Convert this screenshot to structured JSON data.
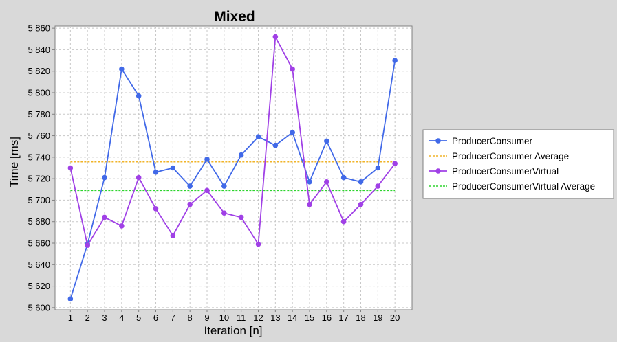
{
  "chart_data": {
    "type": "line",
    "title": "Mixed",
    "xlabel": "Iteration [n]",
    "ylabel": "Time [ms]",
    "x": [
      1,
      2,
      3,
      4,
      5,
      6,
      7,
      8,
      9,
      10,
      11,
      12,
      13,
      14,
      15,
      16,
      17,
      18,
      19,
      20
    ],
    "xticks": [
      "1",
      "2",
      "3",
      "4",
      "5",
      "6",
      "7",
      "8",
      "9",
      "10",
      "11",
      "12",
      "13",
      "14",
      "15",
      "16",
      "17",
      "18",
      "19",
      "20"
    ],
    "ylim": [
      5598,
      5862
    ],
    "yticks": [
      5600,
      5620,
      5640,
      5660,
      5680,
      5700,
      5720,
      5740,
      5760,
      5780,
      5800,
      5820,
      5840,
      5860
    ],
    "ytick_labels": [
      "5 600",
      "5 620",
      "5 640",
      "5 660",
      "5 680",
      "5 700",
      "5 720",
      "5 740",
      "5 760",
      "5 780",
      "5 800",
      "5 820",
      "5 840",
      "5 860"
    ],
    "grid": true,
    "legend_position": "right",
    "series": [
      {
        "name": "ProducerConsumer",
        "style": "line-markers",
        "color": "#4169e8",
        "values": [
          5608,
          5659,
          5721,
          5822,
          5797,
          5726,
          5730,
          5713,
          5738,
          5713,
          5742,
          5759,
          5751,
          5763,
          5717,
          5755,
          5721,
          5717,
          5730,
          5830
        ]
      },
      {
        "name": "ProducerConsumer Average",
        "style": "dashed",
        "color": "#f0b429",
        "values": [
          5735.6,
          5735.6,
          5735.6,
          5735.6,
          5735.6,
          5735.6,
          5735.6,
          5735.6,
          5735.6,
          5735.6,
          5735.6,
          5735.6,
          5735.6,
          5735.6,
          5735.6,
          5735.6,
          5735.6,
          5735.6,
          5735.6,
          5735.6
        ]
      },
      {
        "name": "ProducerConsumerVirtual",
        "style": "line-markers",
        "color": "#a040e6",
        "values": [
          5730,
          5658,
          5684,
          5676,
          5721,
          5692,
          5667,
          5696,
          5709,
          5688,
          5684,
          5659,
          5852,
          5822,
          5696,
          5717,
          5680,
          5696,
          5713,
          5734
        ]
      },
      {
        "name": "ProducerConsumerVirtual Average",
        "style": "dashed",
        "color": "#2ed42e",
        "values": [
          5709,
          5709,
          5709,
          5709,
          5709,
          5709,
          5709,
          5709,
          5709,
          5709,
          5709,
          5709,
          5709,
          5709,
          5709,
          5709,
          5709,
          5709,
          5709,
          5709
        ]
      }
    ]
  }
}
